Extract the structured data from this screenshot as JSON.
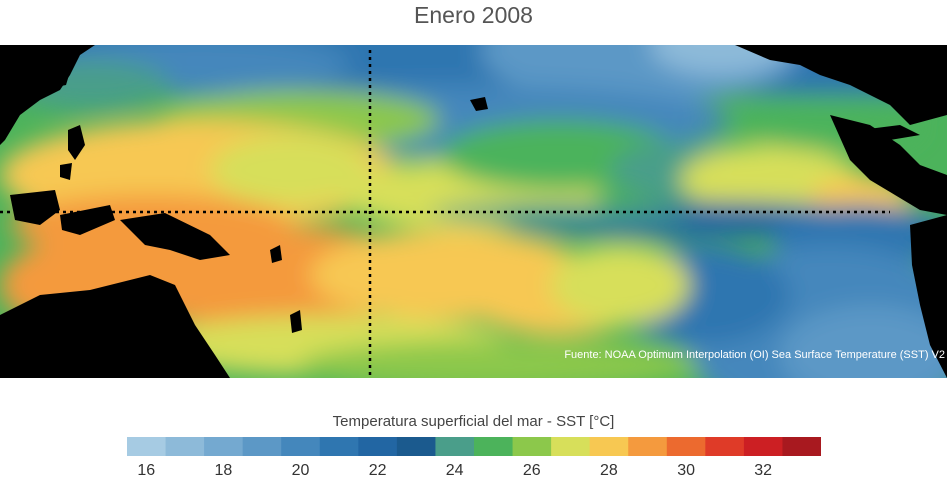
{
  "title": "Enero 2008",
  "source": "Fuente: NOAA Optimum Interpolation (OI) Sea Surface Temperature (SST) V2",
  "colorbar": {
    "label": "Temperatura superficial del mar - SST  [°C]",
    "colors": [
      "#a6cbe3",
      "#8dbad9",
      "#74a9d0",
      "#5c98c6",
      "#4487bc",
      "#2f76b0",
      "#2266a3",
      "#1b5a8e",
      "#4a9e8a",
      "#4cb35b",
      "#8cc84b",
      "#d7df5a",
      "#f7c852",
      "#f49a3e",
      "#ec6a2f",
      "#df3b28",
      "#cc1f23",
      "#a8191f"
    ],
    "ticks": [
      "16",
      "18",
      "20",
      "22",
      "24",
      "26",
      "28",
      "30",
      "32"
    ],
    "tick_values": [
      16,
      18,
      20,
      22,
      24,
      26,
      28,
      30,
      32
    ],
    "min": 15.5,
    "max": 33.5
  }
}
